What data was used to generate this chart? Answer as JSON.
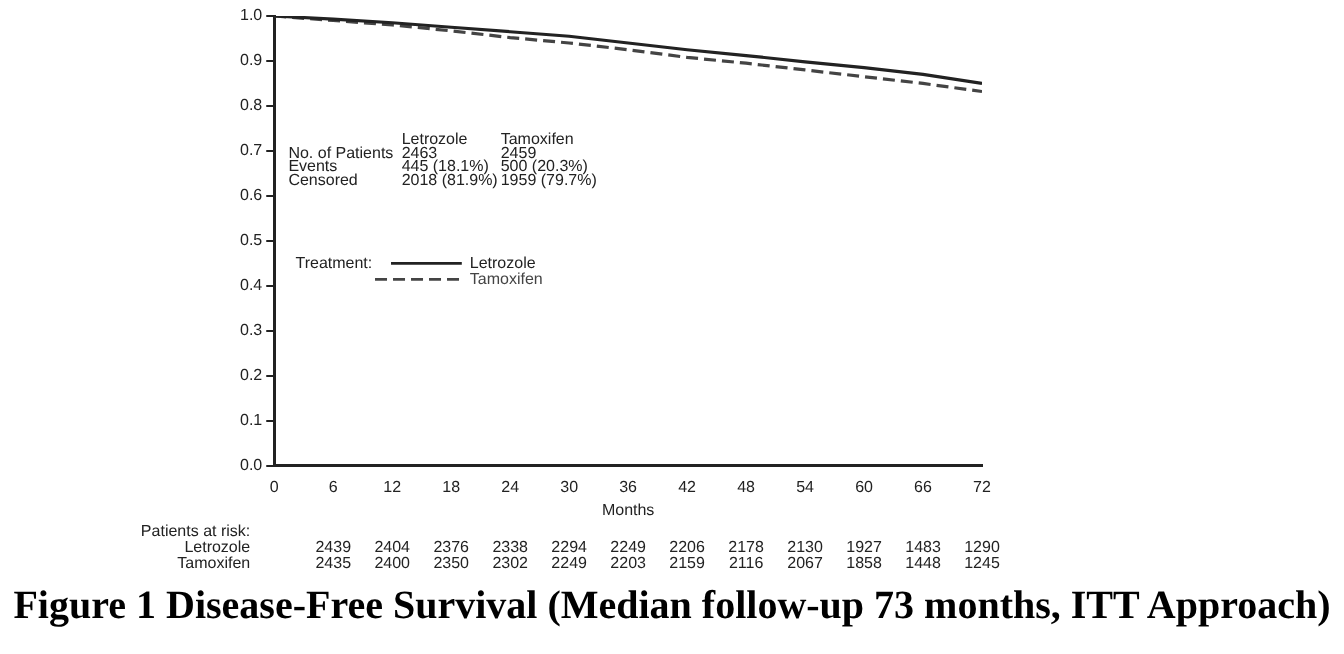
{
  "chart_data": {
    "type": "line",
    "title": "Figure 1 Disease-Free Survival (Median follow-up 73 months, ITT Approach)",
    "xlabel": "Months",
    "legend_title": "Treatment:",
    "legend": "left",
    "grid": false,
    "marker": "none",
    "x": [
      0,
      6,
      12,
      18,
      24,
      30,
      36,
      42,
      48,
      54,
      60,
      66,
      72
    ],
    "xlim": [
      0,
      72
    ],
    "xticks": [
      0,
      6,
      12,
      18,
      24,
      30,
      36,
      42,
      48,
      54,
      60,
      66,
      72
    ],
    "ylim": [
      0,
      1
    ],
    "yticks": [
      {
        "value": 0,
        "label": "0.0"
      },
      0.1,
      0.2,
      0.3,
      0.4,
      0.5,
      0.6,
      0.7,
      0.8,
      0.9,
      {
        "value": 1,
        "label": "1.0"
      }
    ],
    "series": [
      {
        "name": "Letrozole",
        "color": "#222222",
        "line_style": "solid",
        "values": [
          1.0,
          0.993,
          0.985,
          0.975,
          0.965,
          0.955,
          0.94,
          0.925,
          0.912,
          0.898,
          0.885,
          0.87,
          0.85
        ]
      },
      {
        "name": "Tamoxifen",
        "color": "#444444",
        "line_style": "dashed",
        "values": [
          1.0,
          0.99,
          0.98,
          0.967,
          0.952,
          0.94,
          0.925,
          0.908,
          0.895,
          0.88,
          0.865,
          0.85,
          0.832
        ]
      }
    ],
    "annotations": [
      "Letrozole",
      "Tamoxifen",
      "No. of Patients",
      "2463",
      "2459",
      "Events",
      "445 (18.1%)",
      "500 (20.3%)",
      "Censored",
      "2018 (81.9%)",
      "1959 (79.7%)",
      "Patients at risk:",
      "Letrozole",
      "Tamoxifen",
      "2439",
      "2404",
      "2376",
      "2338",
      "2294",
      "2249",
      "2206",
      "2178",
      "2130",
      "1927",
      "1483",
      "1290",
      "2435",
      "2400",
      "2350",
      "2302",
      "2249",
      "2203",
      "2159",
      "2116",
      "2067",
      "1858",
      "1448",
      "1245"
    ]
  }
}
